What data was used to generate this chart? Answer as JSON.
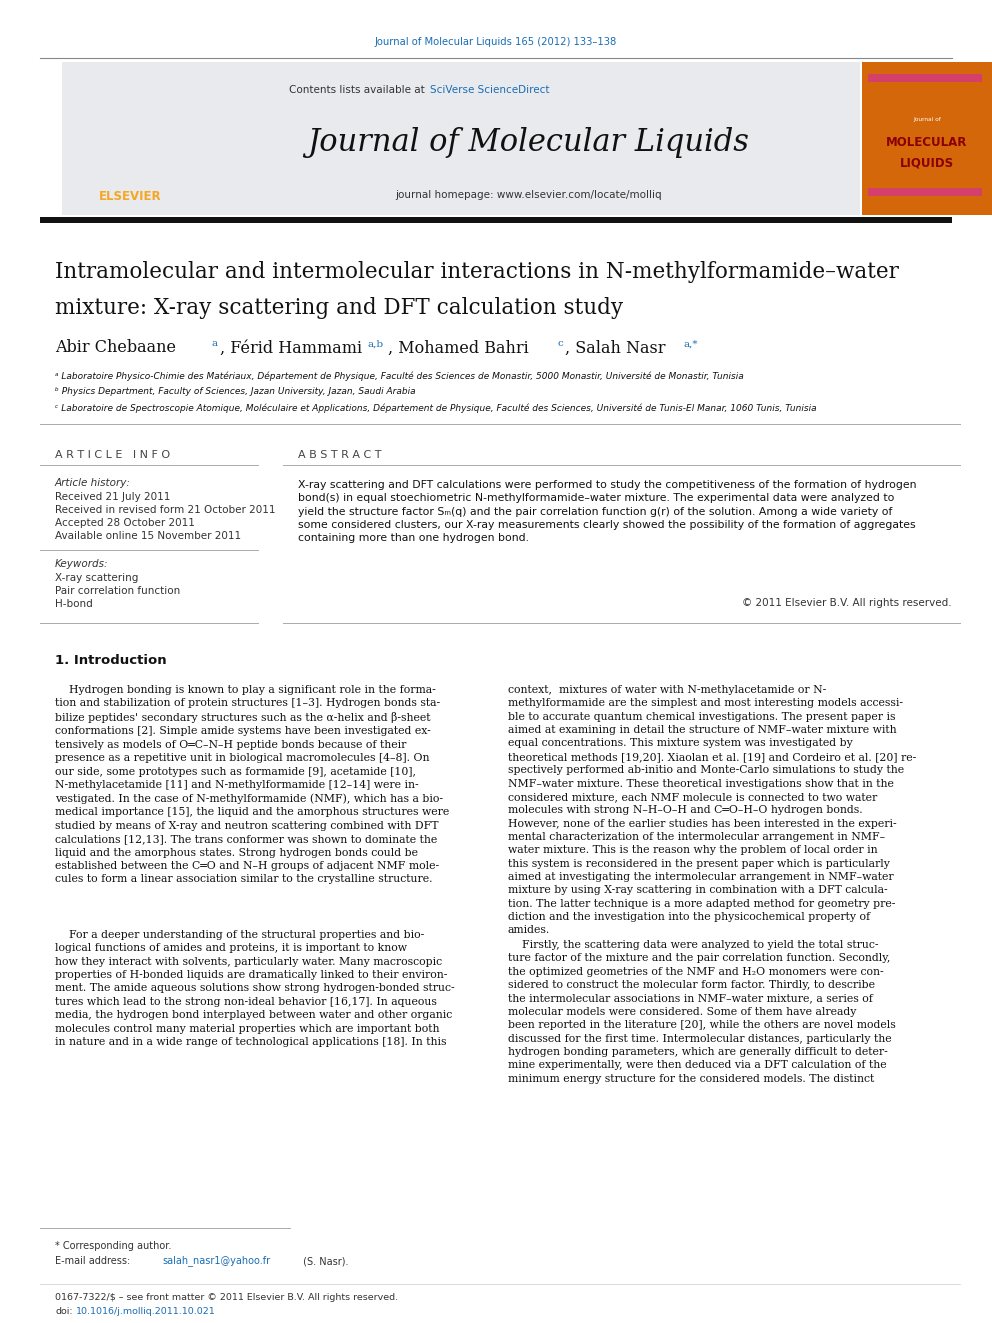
{
  "page_width": 9.92,
  "page_height": 13.23,
  "bg_color": "#ffffff",
  "journal_ref_text": "Journal of Molecular Liquids 165 (2012) 133–138",
  "journal_ref_color": "#1a6eb5",
  "header_bg": "#e8eaed",
  "header_journal_title": "Journal of Molecular Liquids",
  "header_contents_text": "Contents lists available at ",
  "header_sciverse_text": "SciVerse ScienceDirect",
  "header_sciverse_color": "#1a6eb5",
  "header_homepage_text": "journal homepage: www.elsevier.com/locate/molliq",
  "elsevier_color": "#f5a623",
  "elsevier_text": "ELSEVIER",
  "sidebar_bg": "#d4670a",
  "sidebar_title1": "MOLECULAR",
  "sidebar_title2": "LIQUIDS",
  "article_info_title": "A R T I C L E   I N F O",
  "abstract_title": "A B S T R A C T",
  "article_history_title": "Article history:",
  "received_text": "Received 21 July 2011",
  "received_revised_text": "Received in revised form 21 October 2011",
  "accepted_text": "Accepted 28 October 2011",
  "available_text": "Available online 15 November 2011",
  "keywords_title": "Keywords:",
  "keyword1": "X-ray scattering",
  "keyword2": "Pair correlation function",
  "keyword3": "H-bond",
  "copyright_text": "© 2011 Elsevier B.V. All rights reserved.",
  "intro_title": "1. Introduction",
  "footnote1": "* Corresponding author.",
  "footer_text": "0167-7322/$ – see front matter © 2011 Elsevier B.V. All rights reserved.",
  "link_color": "#1a6eb5"
}
